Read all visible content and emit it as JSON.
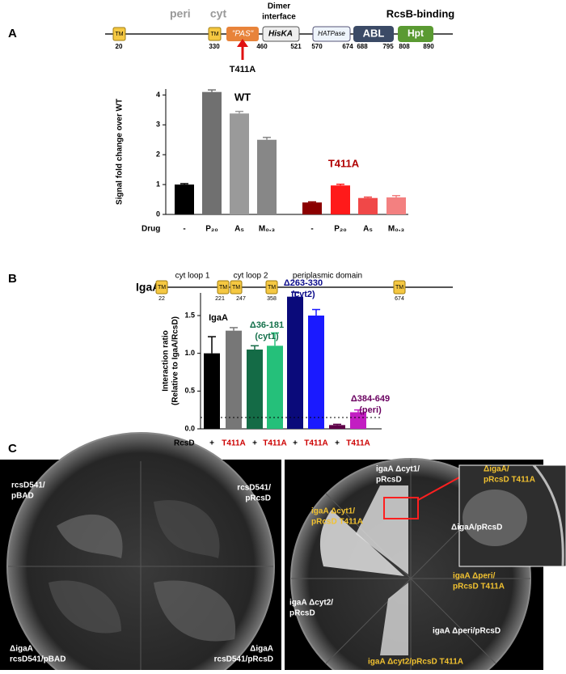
{
  "panels": {
    "a": "A",
    "b": "B",
    "c": "C"
  },
  "rcsd_map": {
    "regions": [
      "peri",
      "cyt"
    ],
    "dimer": [
      "Dimer",
      "interface"
    ],
    "binding": "RcsB-binding",
    "tm": "TM",
    "domains": [
      "\"PAS\"",
      "HisKA",
      "HATPase",
      "ABL",
      "Hpt"
    ],
    "positions": [
      "20",
      "330",
      "460",
      "521",
      "570",
      "674",
      "688",
      "795",
      "808",
      "890"
    ],
    "mutation": "T411A"
  },
  "igaa_map": {
    "name": "IgaA",
    "tm": "TM",
    "regions": [
      "cyt loop 1",
      "cyt loop 2",
      "periplasmic domain"
    ],
    "positions": [
      "22",
      "221",
      "247",
      "358",
      "674"
    ]
  },
  "chart_data": [
    {
      "type": "bar",
      "y_label": "Signal fold change over WT",
      "x_label": "Drug",
      "categories": [
        "-",
        "P₂₀",
        "A₅",
        "M₀.₃",
        "-",
        "P₂₀",
        "A₅",
        "M₀.₃"
      ],
      "values": [
        1.0,
        4.1,
        3.38,
        2.5,
        0.4,
        0.97,
        0.55,
        0.57
      ],
      "errors": [
        0.03,
        0.07,
        0.07,
        0.08,
        0.02,
        0.04,
        0.03,
        0.06
      ],
      "colors": [
        "#000000",
        "#707070",
        "#9a9a9a",
        "#878787",
        "#8b0000",
        "#ff1a1a",
        "#f04848",
        "#f38080"
      ],
      "category_colors": [
        "#000",
        "#000",
        "#000",
        "#000",
        "#000",
        "#000",
        "#000",
        "#000"
      ],
      "annotations": [
        {
          "text": "WT",
          "color": "#000000"
        },
        {
          "text": "T411A",
          "color": "#b00000"
        }
      ],
      "ylim": [
        0,
        4.2
      ],
      "yticks": [
        0,
        1,
        2,
        3,
        4
      ]
    },
    {
      "type": "bar",
      "y_label": [
        "Interaction ratio",
        "(Relative to IgaA/RcsD)"
      ],
      "x_label": "RcsD",
      "categories": [
        "+",
        "T411A",
        "+",
        "T411A",
        "+",
        "T411A",
        "+",
        "T411A"
      ],
      "values": [
        1.0,
        1.3,
        1.05,
        1.1,
        1.75,
        1.5,
        0.05,
        0.22
      ],
      "errors": [
        0.22,
        0.04,
        0.05,
        0.17,
        0.06,
        0.08,
        0.01,
        0.03
      ],
      "colors": [
        "#000000",
        "#777777",
        "#146b46",
        "#25c07a",
        "#0a0a7a",
        "#1a1aff",
        "#5e0048",
        "#c21ec2"
      ],
      "category_colors": [
        "#000",
        "#cc0000",
        "#000",
        "#cc0000",
        "#000",
        "#cc0000",
        "#000",
        "#cc0000"
      ],
      "annotations": [
        {
          "text": "IgaA",
          "color": "#000000"
        },
        {
          "text": "Δ36-181",
          "color": "#13704a"
        },
        {
          "text": "(cyt1)",
          "color": "#13704a"
        },
        {
          "text": "Δ263-330",
          "color": "#0a0a8a"
        },
        {
          "text": "(cyt2)",
          "color": "#0a0a8a"
        },
        {
          "text": "Δ384-649",
          "color": "#6a0060"
        },
        {
          "text": "(peri)",
          "color": "#6a0060"
        }
      ],
      "threshold": 0.15,
      "ylim": [
        0,
        1.8
      ],
      "yticks": [
        {
          "value": 0,
          "label": "0.0"
        },
        0.5,
        {
          "value": 1,
          "label": "1.0"
        },
        1.5
      ]
    }
  ],
  "plates": {
    "left": [
      "rcsD541/",
      "pBAD",
      "rcsD541/",
      "pRcsD",
      "ΔigaA",
      "rcsD541/pBAD",
      "ΔigaA",
      "rcsD541/pRcsD"
    ],
    "right": [
      "igaA Δcyt1/",
      "pRcsD",
      "ΔigaA/",
      "pRcsD T411A",
      "igaA Δcyt1/",
      "pRcsD T411A",
      "ΔigaA/pRcsD",
      "igaA Δcyt2/",
      "pRcsD",
      "igaA Δperi/",
      "pRcsD T411A",
      "igaA Δperi/pRcsD",
      "igaA Δcyt2/pRcsD T411A"
    ]
  }
}
